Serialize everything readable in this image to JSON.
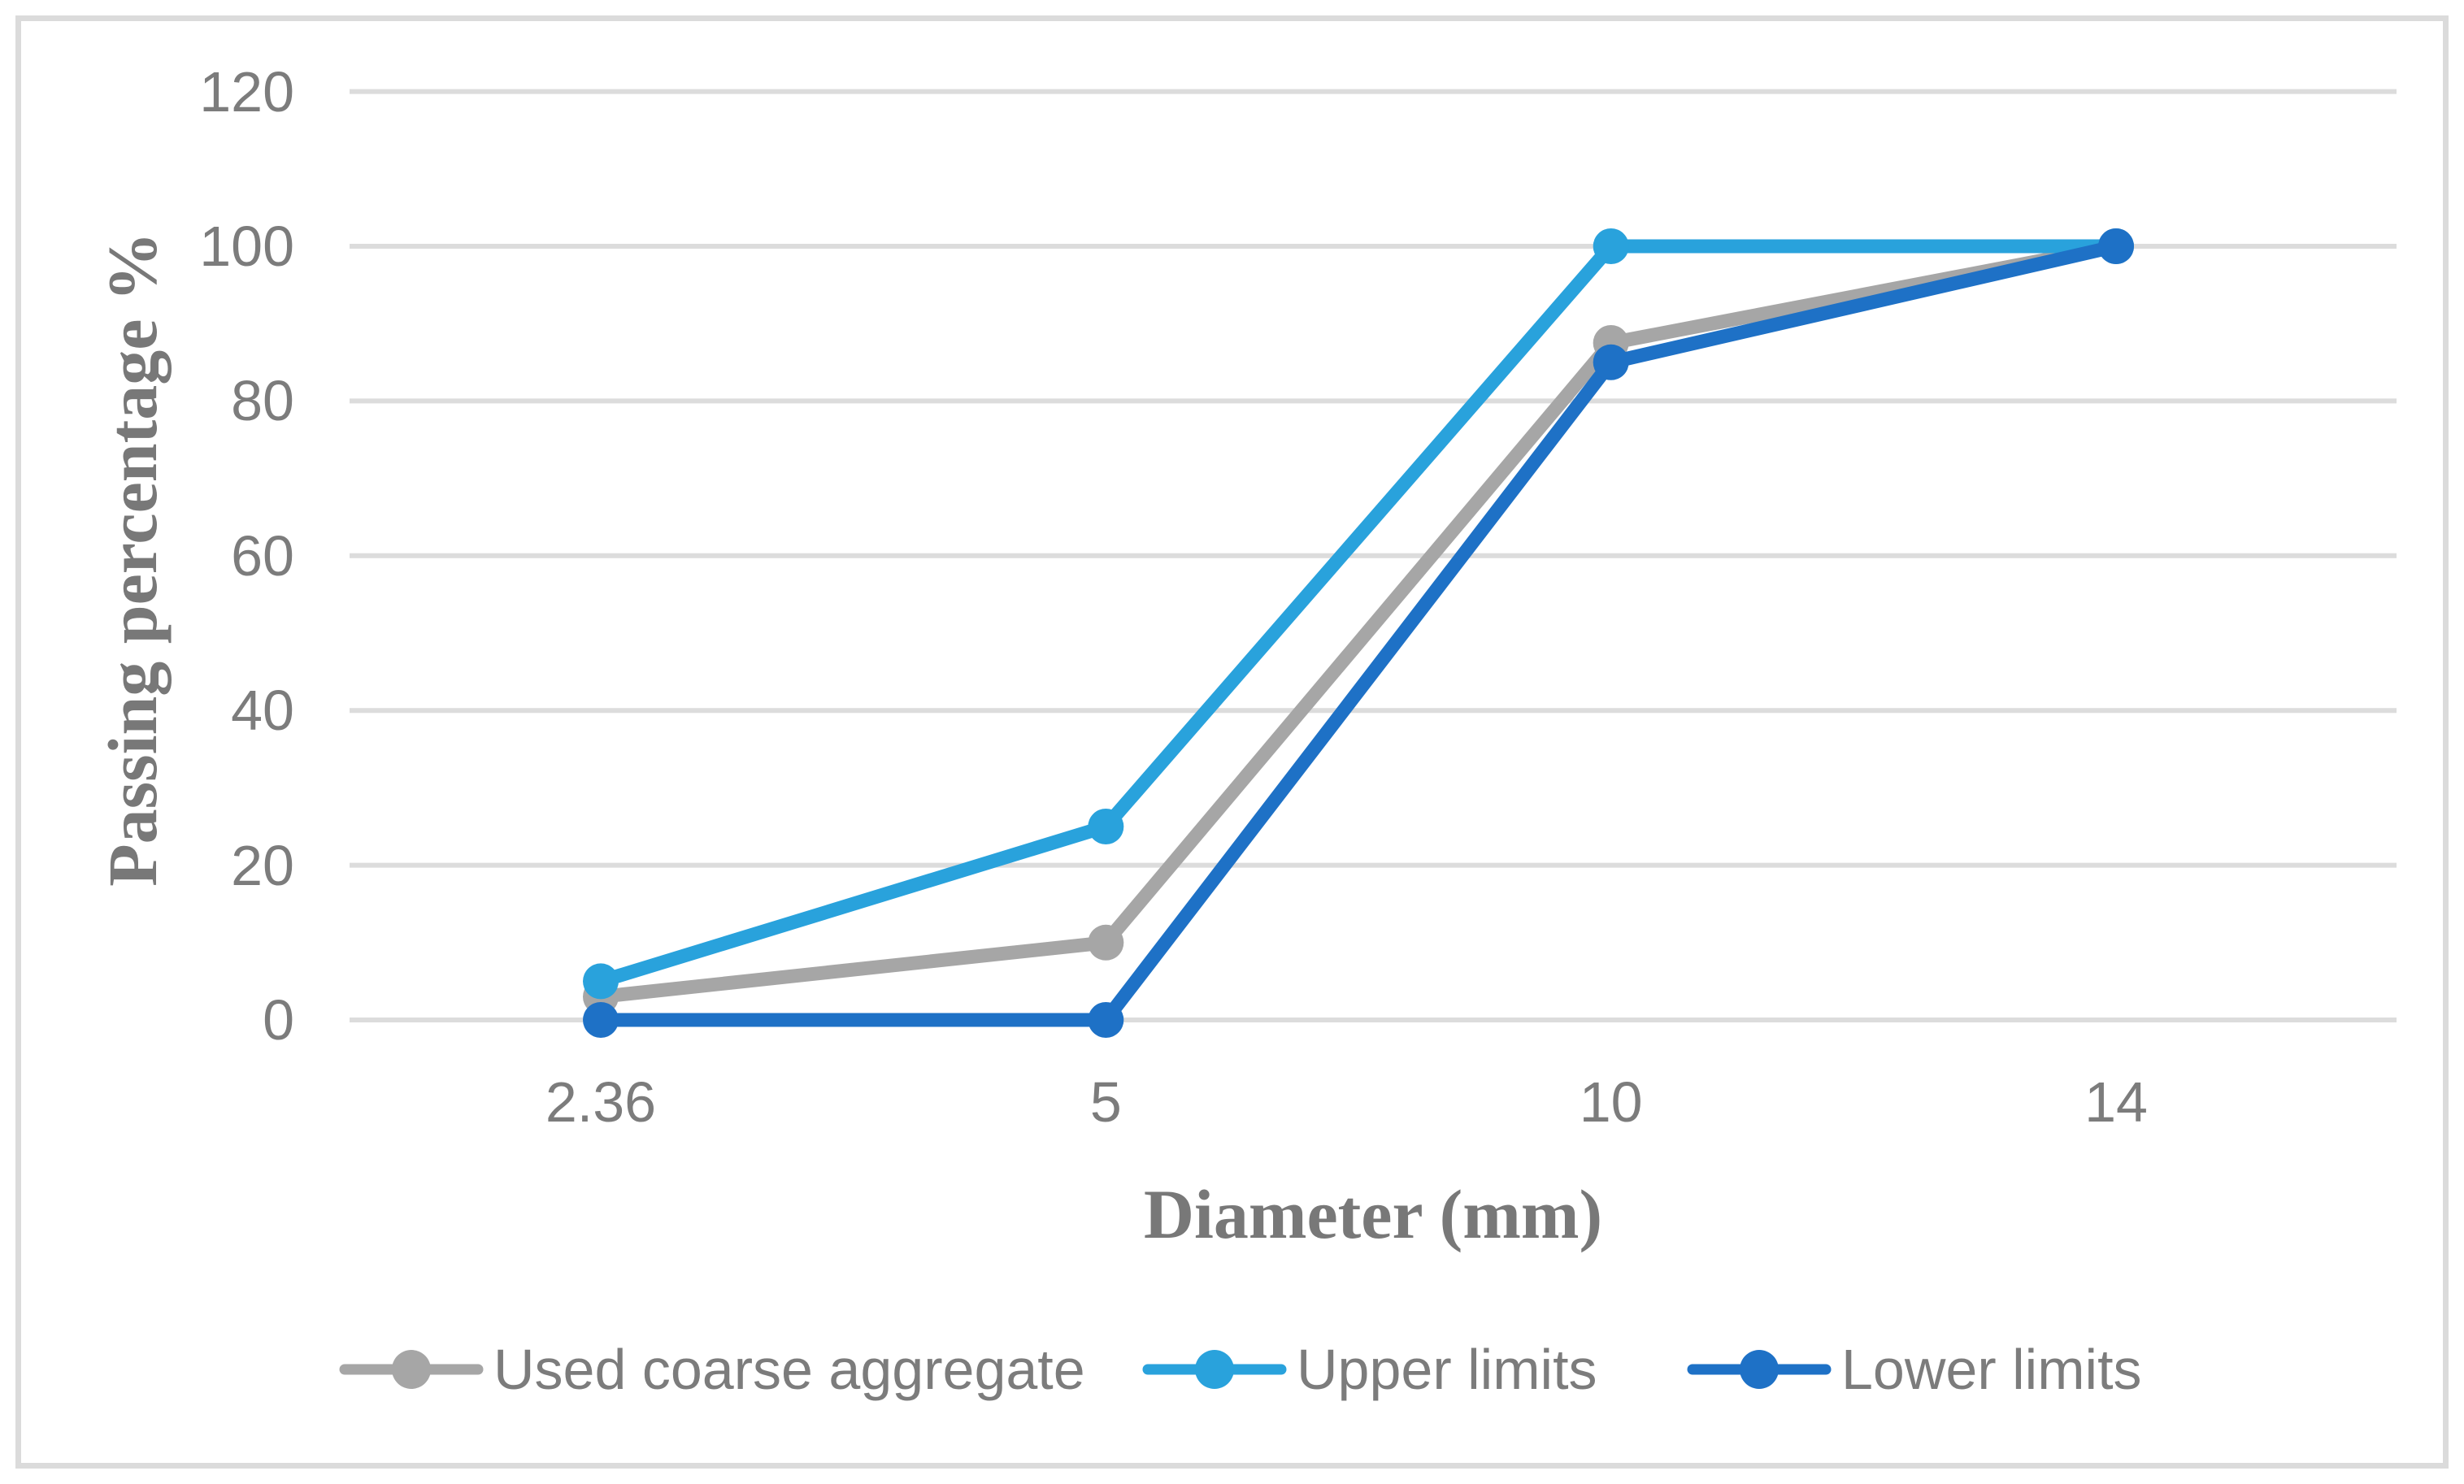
{
  "chart_data": {
    "type": "line",
    "title": "",
    "xlabel": "Diameter (mm)",
    "ylabel": "Passing percentage %",
    "categories": [
      "2.36",
      "5",
      "10",
      "14"
    ],
    "series": [
      {
        "name": "Used coarse aggregate",
        "color": "#A6A6A6",
        "values": [
          3,
          10,
          87.5,
          100
        ]
      },
      {
        "name": "Upper limits",
        "color": "#29A2DC",
        "values": [
          5,
          25,
          100,
          100
        ]
      },
      {
        "name": "Lower limits",
        "color": "#1E71C6",
        "values": [
          0,
          0,
          85,
          100
        ]
      }
    ],
    "ylim": [
      0,
      120
    ],
    "y_ticks": [
      0,
      20,
      40,
      60,
      80,
      100,
      120
    ],
    "grid": "horizontal",
    "legend_position": "bottom",
    "marker": "circle",
    "colors": {
      "background": "#FFFFFF",
      "frame": "#DBDBDB",
      "gridline": "#DCDCDC",
      "tick_text": "#7C7C7C",
      "axis_title_text": "#787878",
      "legend_text": "#7C7C7C"
    }
  }
}
